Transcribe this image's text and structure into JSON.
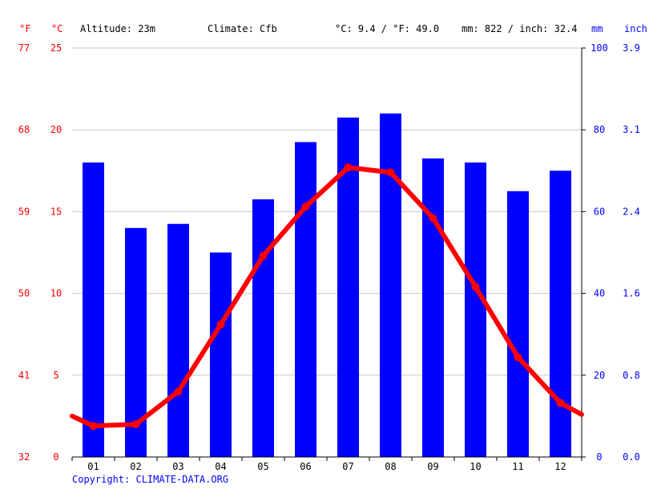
{
  "header": {
    "unit_f": "°F",
    "unit_c": "°C",
    "altitude": "Altitude: 23m",
    "climate": "Climate: Cfb",
    "avg_temp": "°C: 9.4 / °F: 49.0",
    "precip": "mm: 822 / inch: 32.4",
    "unit_mm": "mm",
    "unit_inch": "inch"
  },
  "copyright": "Copyright: CLIMATE-DATA.ORG",
  "colors": {
    "bar": "#0000ff",
    "line": "#ff0000",
    "grid": "#c8c8c8",
    "axis": "#000000"
  },
  "chart_data": {
    "type": "bar",
    "categories": [
      "01",
      "02",
      "03",
      "04",
      "05",
      "06",
      "07",
      "08",
      "09",
      "10",
      "11",
      "12"
    ],
    "series": [
      {
        "type": "bar",
        "axis": "right",
        "unit": "mm",
        "values": [
          72,
          56,
          57,
          50,
          63,
          77,
          83,
          84,
          73,
          72,
          65,
          70
        ]
      },
      {
        "type": "line",
        "axis": "left",
        "unit": "°C",
        "values": [
          1.9,
          2.0,
          4.0,
          8.1,
          12.3,
          15.3,
          17.7,
          17.4,
          14.6,
          10.4,
          6.1,
          3.3
        ],
        "edge_start": 2.5,
        "edge_end": 2.6
      }
    ],
    "y_left_c": {
      "ticks": [
        "0",
        "5",
        "10",
        "15",
        "20",
        "25"
      ],
      "ylim": [
        0,
        25
      ]
    },
    "y_left_f": {
      "ticks": [
        "32",
        "41",
        "50",
        "59",
        "68",
        "77"
      ]
    },
    "y_right_mm": {
      "ticks": [
        "0",
        "20",
        "40",
        "60",
        "80",
        "100"
      ],
      "ylim": [
        0,
        100
      ]
    },
    "y_right_inch": {
      "ticks": [
        "0.0",
        "0.8",
        "1.6",
        "2.4",
        "3.1",
        "3.9"
      ]
    },
    "grid": true
  }
}
